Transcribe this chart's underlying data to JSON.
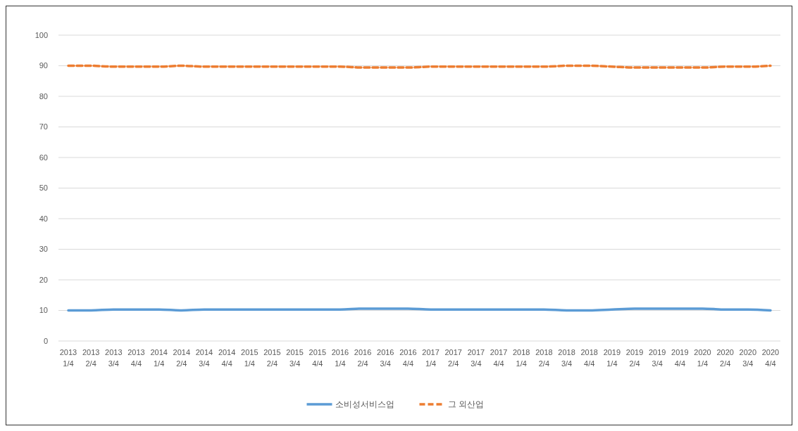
{
  "chart_data": {
    "type": "line",
    "categories": [
      "2013 1/4",
      "2013 2/4",
      "2013 3/4",
      "2013 4/4",
      "2014 1/4",
      "2014 2/4",
      "2014 3/4",
      "2014 4/4",
      "2015 1/4",
      "2015 2/4",
      "2015 3/4",
      "2015 4/4",
      "2016 1/4",
      "2016 2/4",
      "2016 3/4",
      "2016 4/4",
      "2017 1/4",
      "2017 2/4",
      "2017 3/4",
      "2017 4/4",
      "2018 1/4",
      "2018 2/4",
      "2018 3/4",
      "2018 4/4",
      "2019 1/4",
      "2019 2/4",
      "2019 3/4",
      "2019 4/4",
      "2020 1/4",
      "2020 2/4",
      "2020 3/4",
      "2020 4/4"
    ],
    "series": [
      {
        "name": "소비성서비스업",
        "color": "#5b9bd5",
        "line_style": "solid",
        "values": [
          10,
          10,
          10.3,
          10.3,
          10.3,
          10,
          10.3,
          10.3,
          10.3,
          10.3,
          10.3,
          10.3,
          10.3,
          10.6,
          10.6,
          10.6,
          10.3,
          10.3,
          10.3,
          10.3,
          10.3,
          10.3,
          10,
          10,
          10.3,
          10.6,
          10.6,
          10.6,
          10.6,
          10.3,
          10.3,
          10
        ]
      },
      {
        "name": "그 외산업",
        "color": "#ed7d31",
        "line_style": "dashed",
        "values": [
          90,
          90,
          89.7,
          89.7,
          89.7,
          90,
          89.7,
          89.7,
          89.7,
          89.7,
          89.7,
          89.7,
          89.7,
          89.4,
          89.4,
          89.4,
          89.7,
          89.7,
          89.7,
          89.7,
          89.7,
          89.7,
          90,
          90,
          89.7,
          89.4,
          89.4,
          89.4,
          89.4,
          89.7,
          89.7,
          90
        ]
      }
    ],
    "ylim": [
      0,
      100
    ],
    "yticks": [
      0,
      10,
      20,
      30,
      40,
      50,
      60,
      70,
      80,
      90,
      100
    ],
    "grid": true,
    "legend": "bottom",
    "marker": "none"
  }
}
